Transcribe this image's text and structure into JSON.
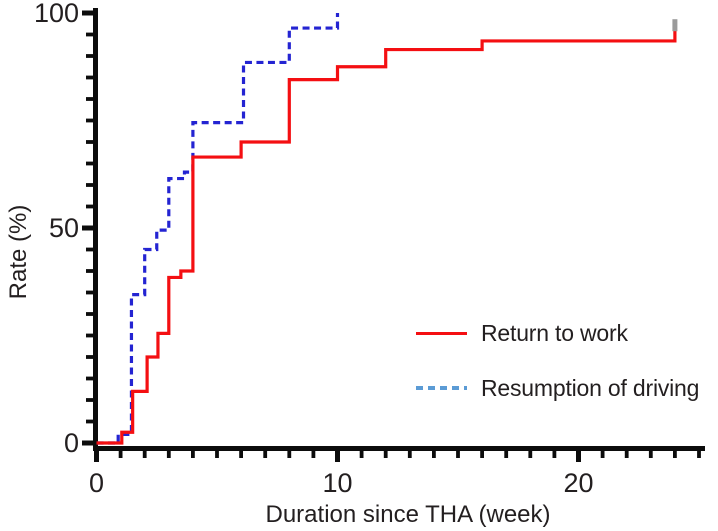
{
  "chart_data": {
    "type": "line",
    "subtype": "kaplan-meier-step-curves",
    "title": "",
    "xlabel": "Duration since THA (week)",
    "ylabel": "Rate (%)",
    "xlim": [
      0,
      25.2
    ],
    "ylim": [
      0,
      100
    ],
    "grid": false,
    "legend_position": "inside lower right",
    "x_major_ticks": [
      0,
      10,
      20
    ],
    "x_major_tick_labels": [
      "0",
      "10",
      "20"
    ],
    "x_minor_tick_interval_weeks": 1,
    "x_minor_tick_max_week": 25,
    "y_major_ticks": [
      0,
      50,
      100
    ],
    "y_major_tick_labels": [
      "0",
      "50",
      "100"
    ],
    "y_minor_tick_interval_percent": 5,
    "censor_color": "#9b9b9b",
    "axis_color": "#0c0c0c",
    "text_color": "#231f20",
    "series": [
      {
        "name": "Return to work",
        "style": "solid",
        "color": "#f40f12",
        "legend_swatch_color": "#f40f12",
        "start": [
          0,
          0
        ],
        "events_week_rate": [
          [
            1.05,
            2.5
          ],
          [
            1.5,
            12
          ],
          [
            2.1,
            20
          ],
          [
            2.55,
            25.5
          ],
          [
            3,
            38.5
          ],
          [
            3.5,
            40
          ],
          [
            4,
            66.5
          ],
          [
            6,
            70
          ],
          [
            8,
            84.5
          ],
          [
            10,
            87.5
          ],
          [
            12,
            91.5
          ],
          [
            16,
            93.5
          ],
          [
            24,
            96
          ]
        ],
        "end_week": 24,
        "end_rate": 96,
        "censor_marks_week_rate": [
          [
            24,
            96
          ]
        ]
      },
      {
        "name": "Resumption of driving",
        "style": "dashed",
        "color": "#2424d2",
        "legend_swatch_color": "#5b9bd5",
        "start": [
          0,
          0
        ],
        "events_week_rate": [
          [
            0.9,
            2
          ],
          [
            1.45,
            34.5
          ],
          [
            2,
            45
          ],
          [
            2.5,
            49.5
          ],
          [
            3,
            61.5
          ],
          [
            3.65,
            63
          ],
          [
            4,
            74.5
          ],
          [
            6.1,
            88.5
          ],
          [
            8,
            96.5
          ],
          [
            10,
            100
          ]
        ],
        "end_week": 10,
        "end_rate": 100,
        "censor_marks_week_rate": []
      }
    ]
  },
  "legend": {
    "items": [
      {
        "label": "Return to work"
      },
      {
        "label": "Resumption of driving"
      }
    ]
  }
}
